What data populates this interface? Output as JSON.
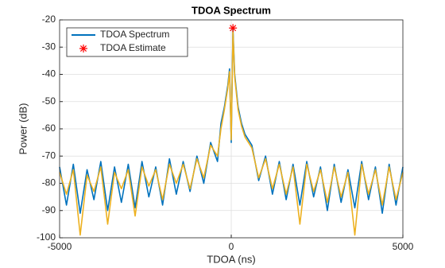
{
  "chart_data": {
    "type": "line",
    "title": "TDOA Spectrum",
    "xlabel": "TDOA (ns)",
    "ylabel": "Power (dB)",
    "x": [
      -5000,
      -4800,
      -4600,
      -4400,
      -4200,
      -4000,
      -3800,
      -3600,
      -3400,
      -3200,
      -3000,
      -2800,
      -2600,
      -2400,
      -2200,
      -2000,
      -1800,
      -1600,
      -1400,
      -1200,
      -1000,
      -800,
      -600,
      -400,
      -300,
      -200,
      -100,
      -50,
      0,
      50,
      100,
      150,
      200,
      300,
      400,
      600,
      800,
      1000,
      1200,
      1400,
      1600,
      1800,
      2000,
      2200,
      2400,
      2600,
      2800,
      3000,
      3200,
      3400,
      3600,
      3800,
      4000,
      4200,
      4400,
      4600,
      4800,
      5000
    ],
    "series": [
      {
        "name": "TDOA Spectrum",
        "color": "#0072bd",
        "values": [
          -74,
          -88,
          -73,
          -91,
          -75,
          -86,
          -72,
          -90,
          -74,
          -87,
          -73,
          -89,
          -72,
          -85,
          -74,
          -88,
          -71,
          -84,
          -72,
          -83,
          -70,
          -80,
          -65,
          -72,
          -58,
          -52,
          -44,
          -38,
          -65,
          -23,
          -40,
          -46,
          -52,
          -58,
          -62,
          -66,
          -79,
          -70,
          -84,
          -72,
          -86,
          -73,
          -88,
          -72,
          -85,
          -74,
          -90,
          -73,
          -87,
          -75,
          -89,
          -72,
          -86,
          -74,
          -91,
          -73,
          -88,
          -74
        ]
      },
      {
        "color": "#edb120",
        "values": [
          -76,
          -84,
          -75,
          -99,
          -77,
          -83,
          -74,
          -95,
          -76,
          -82,
          -75,
          -92,
          -74,
          -81,
          -75,
          -86,
          -73,
          -80,
          -73,
          -82,
          -71,
          -78,
          -66,
          -70,
          -60,
          -53,
          -45,
          -39,
          -64,
          -24,
          -41,
          -47,
          -53,
          -59,
          -63,
          -67,
          -78,
          -71,
          -82,
          -73,
          -84,
          -74,
          -95,
          -73,
          -83,
          -75,
          -87,
          -74,
          -85,
          -76,
          -99,
          -73,
          -84,
          -75,
          -88,
          -74,
          -86,
          -76
        ]
      },
      {
        "name": "TDOA Estimate",
        "type": "scatter",
        "color": "#ff0000",
        "x": [
          50
        ],
        "values": [
          -23
        ]
      }
    ],
    "xlim": [
      -5000,
      5000
    ],
    "xticks": [
      -5000,
      0,
      5000
    ],
    "ylim": [
      -100,
      -20
    ],
    "yticks": [
      -100,
      -90,
      -80,
      -70,
      -60,
      -50,
      -40,
      -30,
      -20
    ],
    "grid": true,
    "legend": "upper left"
  }
}
